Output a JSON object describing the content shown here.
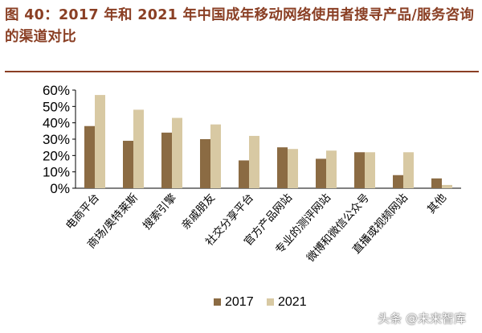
{
  "title": "图 40：2017 年和 2021 年中国成年移动网络使用者搜寻产品/服务咨询的渠道对比",
  "watermark": "头条 @未来智库",
  "chart_data": {
    "type": "bar",
    "categories": [
      "电商平台",
      "商场/奥特莱斯",
      "搜索引擎",
      "亲戚朋友",
      "社交分享平台",
      "官方产品网站",
      "专业的测评网站",
      "微博和微信公众号",
      "直播或视频网站",
      "其他"
    ],
    "series": [
      {
        "name": "2017",
        "color": "#8b6b43",
        "values": [
          38,
          29,
          34,
          30,
          17,
          25,
          18,
          22,
          8,
          6
        ]
      },
      {
        "name": "2021",
        "color": "#d8c9a3",
        "values": [
          57,
          48,
          43,
          39,
          32,
          24,
          23,
          22,
          22,
          2
        ]
      }
    ],
    "yticks": [
      "0%",
      "10%",
      "20%",
      "30%",
      "40%",
      "50%",
      "60%"
    ],
    "ylim": [
      0,
      60
    ],
    "legend_position": "bottom-center",
    "grid": false
  }
}
